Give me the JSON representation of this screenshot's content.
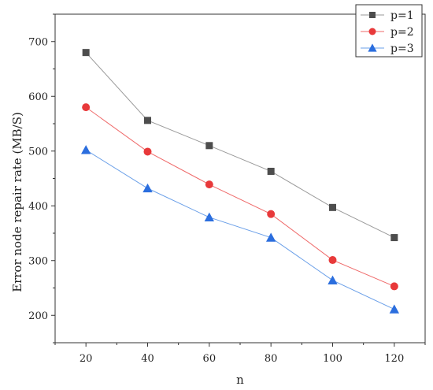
{
  "chart_data": {
    "type": "line",
    "title": "",
    "xlabel": "n",
    "ylabel": "Error node repair rate (MB/S)",
    "x": [
      20,
      40,
      60,
      80,
      100,
      120
    ],
    "x_ticks": [
      20,
      40,
      60,
      80,
      100,
      120
    ],
    "y_ticks": [
      200,
      300,
      400,
      500,
      600,
      700
    ],
    "xlim": [
      10,
      130
    ],
    "ylim": [
      150,
      750
    ],
    "grid": false,
    "legend_position": "top-right",
    "series": [
      {
        "name": "p=1",
        "marker": "square",
        "color": "#4d4d4d",
        "line_color": "#9a9a9a",
        "values": [
          680,
          556,
          510,
          463,
          397,
          342
        ]
      },
      {
        "name": "p=2",
        "marker": "circle",
        "color": "#e8393a",
        "line_color": "#ef6a6a",
        "values": [
          580,
          499,
          439,
          385,
          301,
          253
        ]
      },
      {
        "name": "p=3",
        "marker": "triangle",
        "color": "#2b6ede",
        "line_color": "#6a9fe8",
        "values": [
          502,
          432,
          379,
          342,
          264,
          211
        ]
      }
    ]
  }
}
